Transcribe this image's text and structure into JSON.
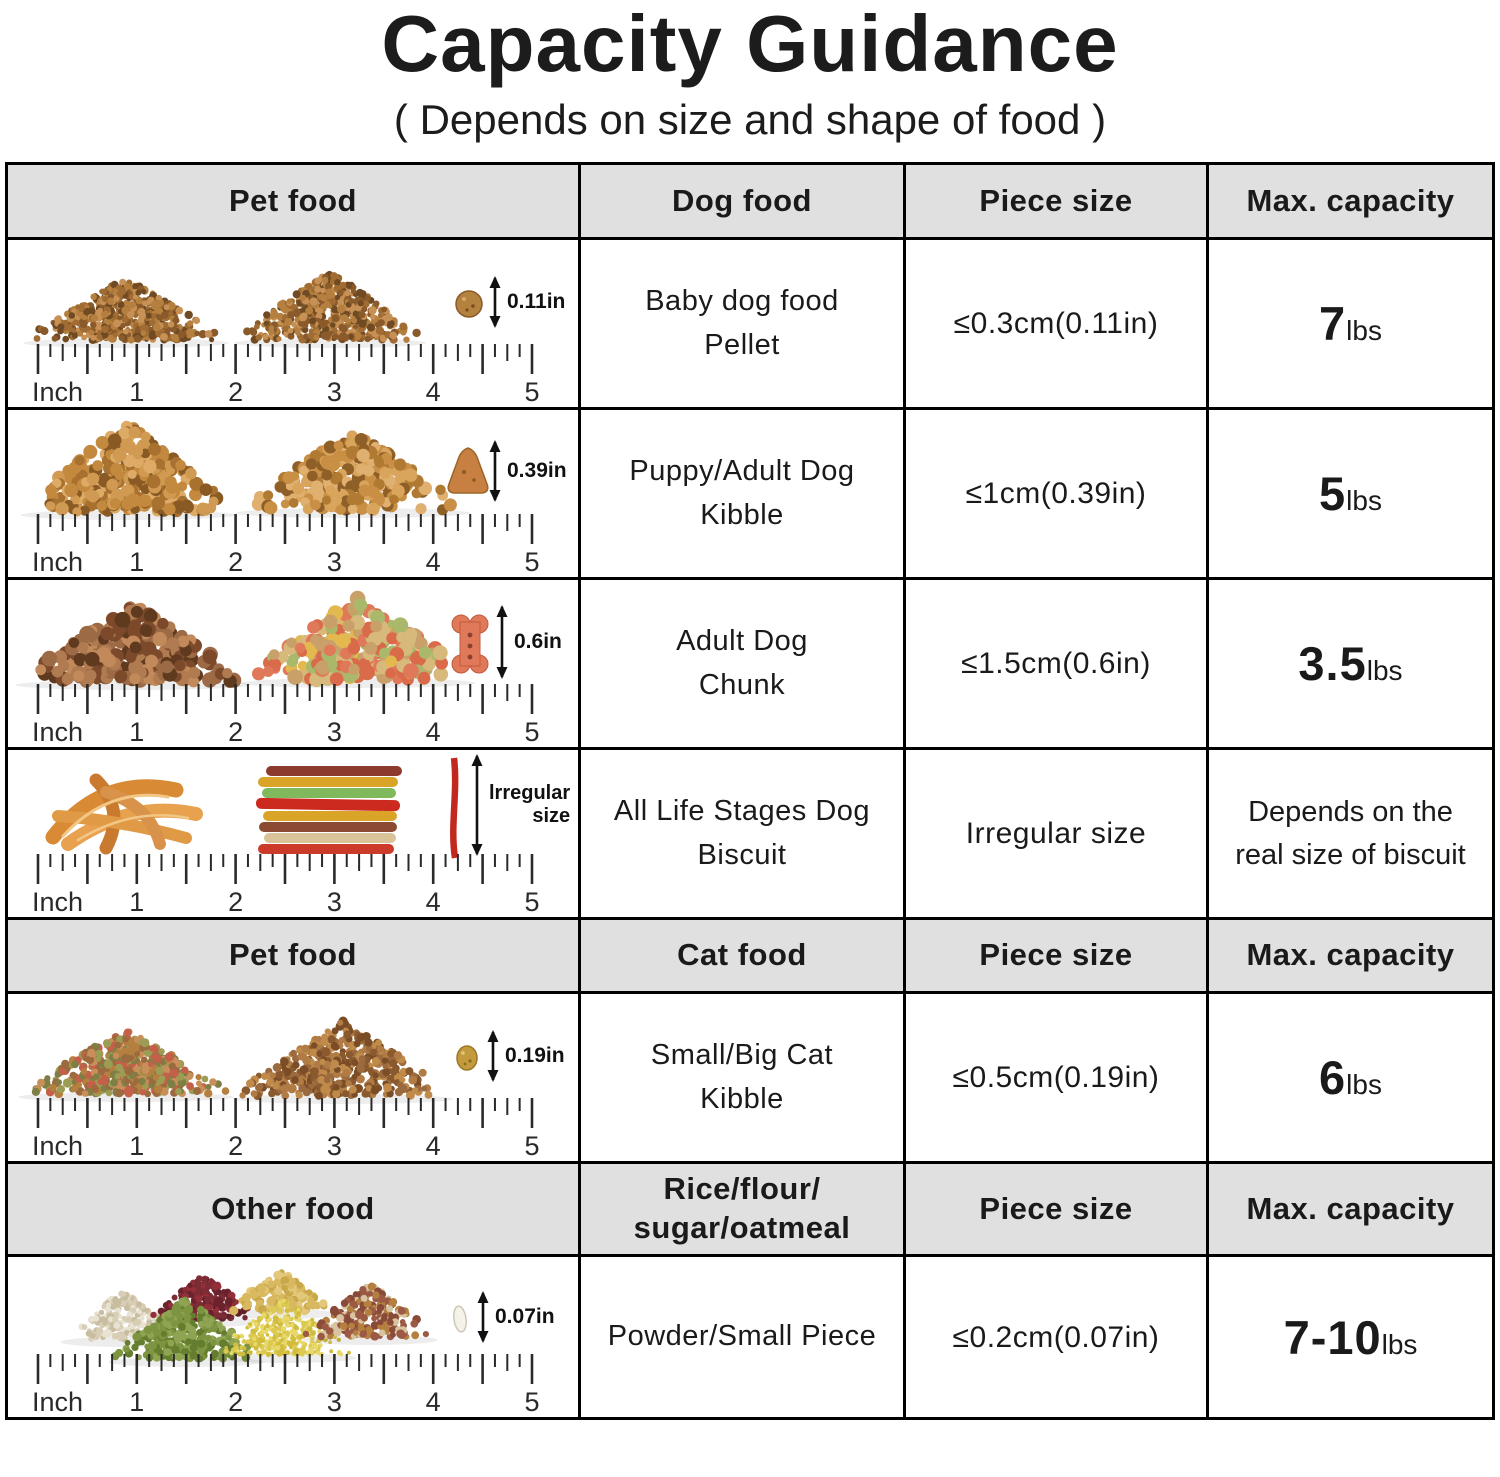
{
  "title": "Capacity Guidance",
  "subtitle": "( Depends on size and shape of food )",
  "ruler_labels": [
    "Inch",
    "1",
    "2",
    "3",
    "4",
    "5"
  ],
  "rows": [
    {
      "c1": "Pet food",
      "c2": "Dog food",
      "c3": "Piece size",
      "c4": "Max. capacity"
    },
    {
      "dim": "0.11in",
      "name": "Baby dog food\nPellet",
      "size": "≤0.3cm(0.11in)",
      "cap_value": "7",
      "cap_unit": "lbs"
    },
    {
      "dim": "0.39in",
      "name": "Puppy/Adult Dog\nKibble",
      "size": "≤1cm(0.39in)",
      "cap_value": "5",
      "cap_unit": "lbs"
    },
    {
      "dim": "0.6in",
      "name": "Adult Dog\nChunk",
      "size": "≤1.5cm(0.6in)",
      "cap_value": "3.5",
      "cap_unit": "lbs"
    },
    {
      "dim": "lrregular\nsize",
      "name": "All Life Stages Dog\nBiscuit",
      "size": "Irregular size",
      "cap_note": "Depends on the\nreal size of biscuit"
    },
    {
      "c1": "Pet food",
      "c2": "Cat food",
      "c3": "Piece size",
      "c4": "Max. capacity"
    },
    {
      "dim": "0.19in",
      "name": "Small/Big Cat\nKibble",
      "size": "≤0.5cm(0.19in)",
      "cap_value": "6",
      "cap_unit": "lbs"
    },
    {
      "c1": "Other food",
      "c2": "Rice/flour/\nsugar/oatmeal",
      "c3": "Piece size",
      "c4": "Max. capacity"
    },
    {
      "dim": "0.07in",
      "name": "Powder/Small Piece",
      "size": "≤0.2cm(0.07in)",
      "cap_value": "7-10",
      "cap_unit": "lbs"
    }
  ]
}
